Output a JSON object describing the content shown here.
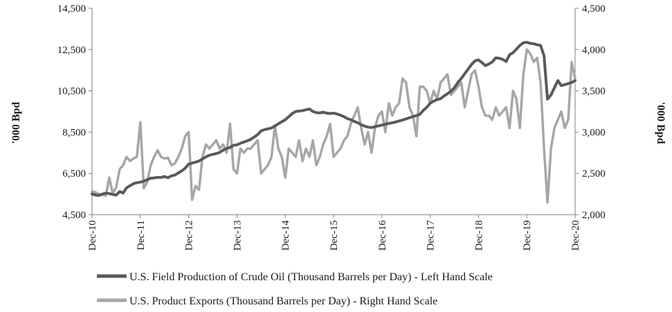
{
  "chart_data": {
    "type": "line",
    "title": "",
    "xlabel": "",
    "ylabel_left": "'000 Bpd",
    "ylabel_right": "'000 Bpd",
    "ylim_left": [
      4500,
      14500
    ],
    "ylim_right": [
      2000,
      4500
    ],
    "yticks_left": [
      "4,500",
      "6,500",
      "8,500",
      "10,500",
      "12,500",
      "14,500"
    ],
    "yticks_right": [
      "2,000",
      "2,500",
      "3,000",
      "3,500",
      "4,000",
      "4,500"
    ],
    "yticks_left_values": [
      4500,
      6500,
      8500,
      10500,
      12500,
      14500
    ],
    "yticks_right_values": [
      2000,
      2500,
      3000,
      3500,
      4000,
      4500
    ],
    "xticks": [
      "Dec-10",
      "Dec-11",
      "Dec-12",
      "Dec-13",
      "Dec-14",
      "Dec-15",
      "Dec-16",
      "Dec-17",
      "Dec-18",
      "Dec-19",
      "Dec-20"
    ],
    "x_start": "Dec-10",
    "x_end": "Dec-20",
    "grid": false,
    "legend_position": "bottom",
    "series": [
      {
        "name": "U.S. Field Production of Crude Oil (Thousand Barrels per Day) - Left Hand Scale",
        "axis": "left",
        "color": "#595959",
        "values": [
          5500,
          5450,
          5430,
          5500,
          5550,
          5520,
          5480,
          5450,
          5620,
          5550,
          5800,
          5900,
          6000,
          6050,
          6080,
          6120,
          6200,
          6270,
          6280,
          6310,
          6300,
          6350,
          6290,
          6380,
          6420,
          6520,
          6620,
          6750,
          6950,
          7000,
          7050,
          7100,
          7200,
          7300,
          7380,
          7420,
          7460,
          7520,
          7630,
          7700,
          7760,
          7860,
          7880,
          7960,
          8020,
          8080,
          8150,
          8260,
          8380,
          8560,
          8620,
          8660,
          8700,
          8800,
          8900,
          9000,
          9100,
          9250,
          9400,
          9500,
          9520,
          9540,
          9580,
          9620,
          9500,
          9440,
          9430,
          9470,
          9420,
          9400,
          9420,
          9380,
          9320,
          9250,
          9160,
          9100,
          9020,
          8950,
          8860,
          8790,
          8740,
          8720,
          8760,
          8800,
          8840,
          8880,
          8920,
          8950,
          8990,
          9040,
          9090,
          9140,
          9200,
          9250,
          9300,
          9360,
          9550,
          9700,
          9900,
          10000,
          10080,
          10120,
          10250,
          10360,
          10480,
          10650,
          10900,
          11100,
          11330,
          11550,
          11780,
          11950,
          12000,
          11870,
          11720,
          11800,
          11900,
          12100,
          12080,
          12030,
          11920,
          12250,
          12350,
          12520,
          12700,
          12830,
          12850,
          12800,
          12780,
          12730,
          12700,
          12200,
          10100,
          10300,
          10650,
          11000,
          10750,
          10800,
          10850,
          10900,
          11000
        ]
      },
      {
        "name": "U.S. Product Exports (Thousand Barrels per Day) - Right Hand Scale",
        "axis": "right",
        "color": "#a6a6a6",
        "values": [
          2280,
          2270,
          2250,
          2240,
          2230,
          2450,
          2260,
          2330,
          2550,
          2600,
          2700,
          2650,
          2680,
          2700,
          3120,
          2320,
          2400,
          2600,
          2700,
          2780,
          2700,
          2680,
          2690,
          2600,
          2620,
          2700,
          2800,
          2950,
          3000,
          2180,
          2350,
          2300,
          2700,
          2850,
          2800,
          2850,
          2900,
          2800,
          2850,
          2750,
          3100,
          2550,
          2500,
          2800,
          2750,
          2800,
          2800,
          2850,
          2900,
          2500,
          2550,
          2600,
          2700,
          3080,
          2800,
          2700,
          2450,
          2800,
          2750,
          2700,
          2900,
          2650,
          2800,
          2700,
          2900,
          2600,
          2700,
          2850,
          2950,
          3100,
          2700,
          2750,
          2800,
          2900,
          2950,
          3100,
          3200,
          3300,
          3050,
          2850,
          3000,
          2750,
          3050,
          3200,
          3250,
          3000,
          3350,
          3200,
          3300,
          3350,
          3650,
          3600,
          3300,
          3200,
          2950,
          3550,
          3550,
          3500,
          3350,
          3500,
          3400,
          3600,
          3650,
          3700,
          3450,
          3500,
          3550,
          3600,
          3300,
          3500,
          3700,
          3750,
          3550,
          3300,
          3200,
          3200,
          3150,
          3300,
          3200,
          3250,
          3300,
          3050,
          3500,
          3400,
          3050,
          3700,
          4000,
          3950,
          3850,
          3900,
          3600,
          2800,
          2150,
          2800,
          3050,
          3150,
          3250,
          3050,
          3150,
          3850,
          3650
        ]
      }
    ]
  }
}
